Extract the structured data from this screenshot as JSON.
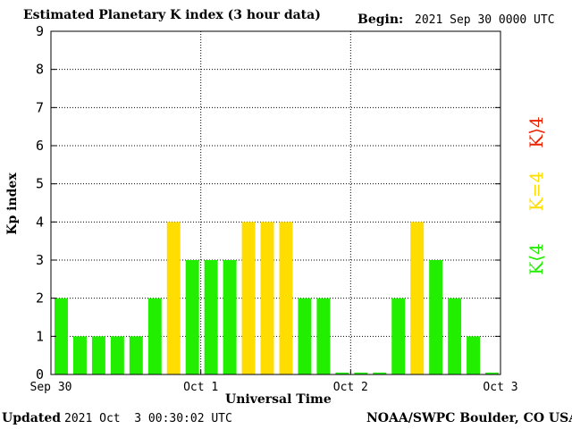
{
  "header": {
    "title": "Estimated Planetary K index (3 hour data)",
    "begin_label": "Begin:",
    "begin_value": "2021 Sep 30 0000 UTC"
  },
  "footer": {
    "updated_label": "Updated",
    "updated_value": "2021 Oct  3 00:30:02 UTC",
    "credit": "NOAA/SWPC Boulder, CO USA"
  },
  "chart_data": {
    "type": "bar",
    "title": "Estimated Planetary K index (3 hour data)",
    "xlabel": "Universal Time",
    "ylabel": "Kp index",
    "ylim": [
      0,
      9
    ],
    "yticks": [
      0,
      1,
      2,
      3,
      4,
      5,
      6,
      7,
      8,
      9
    ],
    "x_tick_labels": [
      "Sep 30",
      "Oct 1",
      "Oct 2",
      "Oct 3"
    ],
    "grid": true,
    "legend": [
      "K<4",
      "K=4",
      "K>4"
    ],
    "colors": {
      "below4": "#22ee00",
      "equal4": "#ffdd00",
      "above4": "#ee2200"
    },
    "values": [
      2,
      1,
      1,
      1,
      1,
      2,
      4,
      3,
      3,
      3,
      4,
      4,
      4,
      2,
      2,
      0.05,
      0.05,
      0.05,
      2,
      4,
      3,
      2,
      1,
      0.05
    ]
  },
  "legend": {
    "below": "K⟨4",
    "equal": "K=4",
    "above": "K⟩4"
  }
}
